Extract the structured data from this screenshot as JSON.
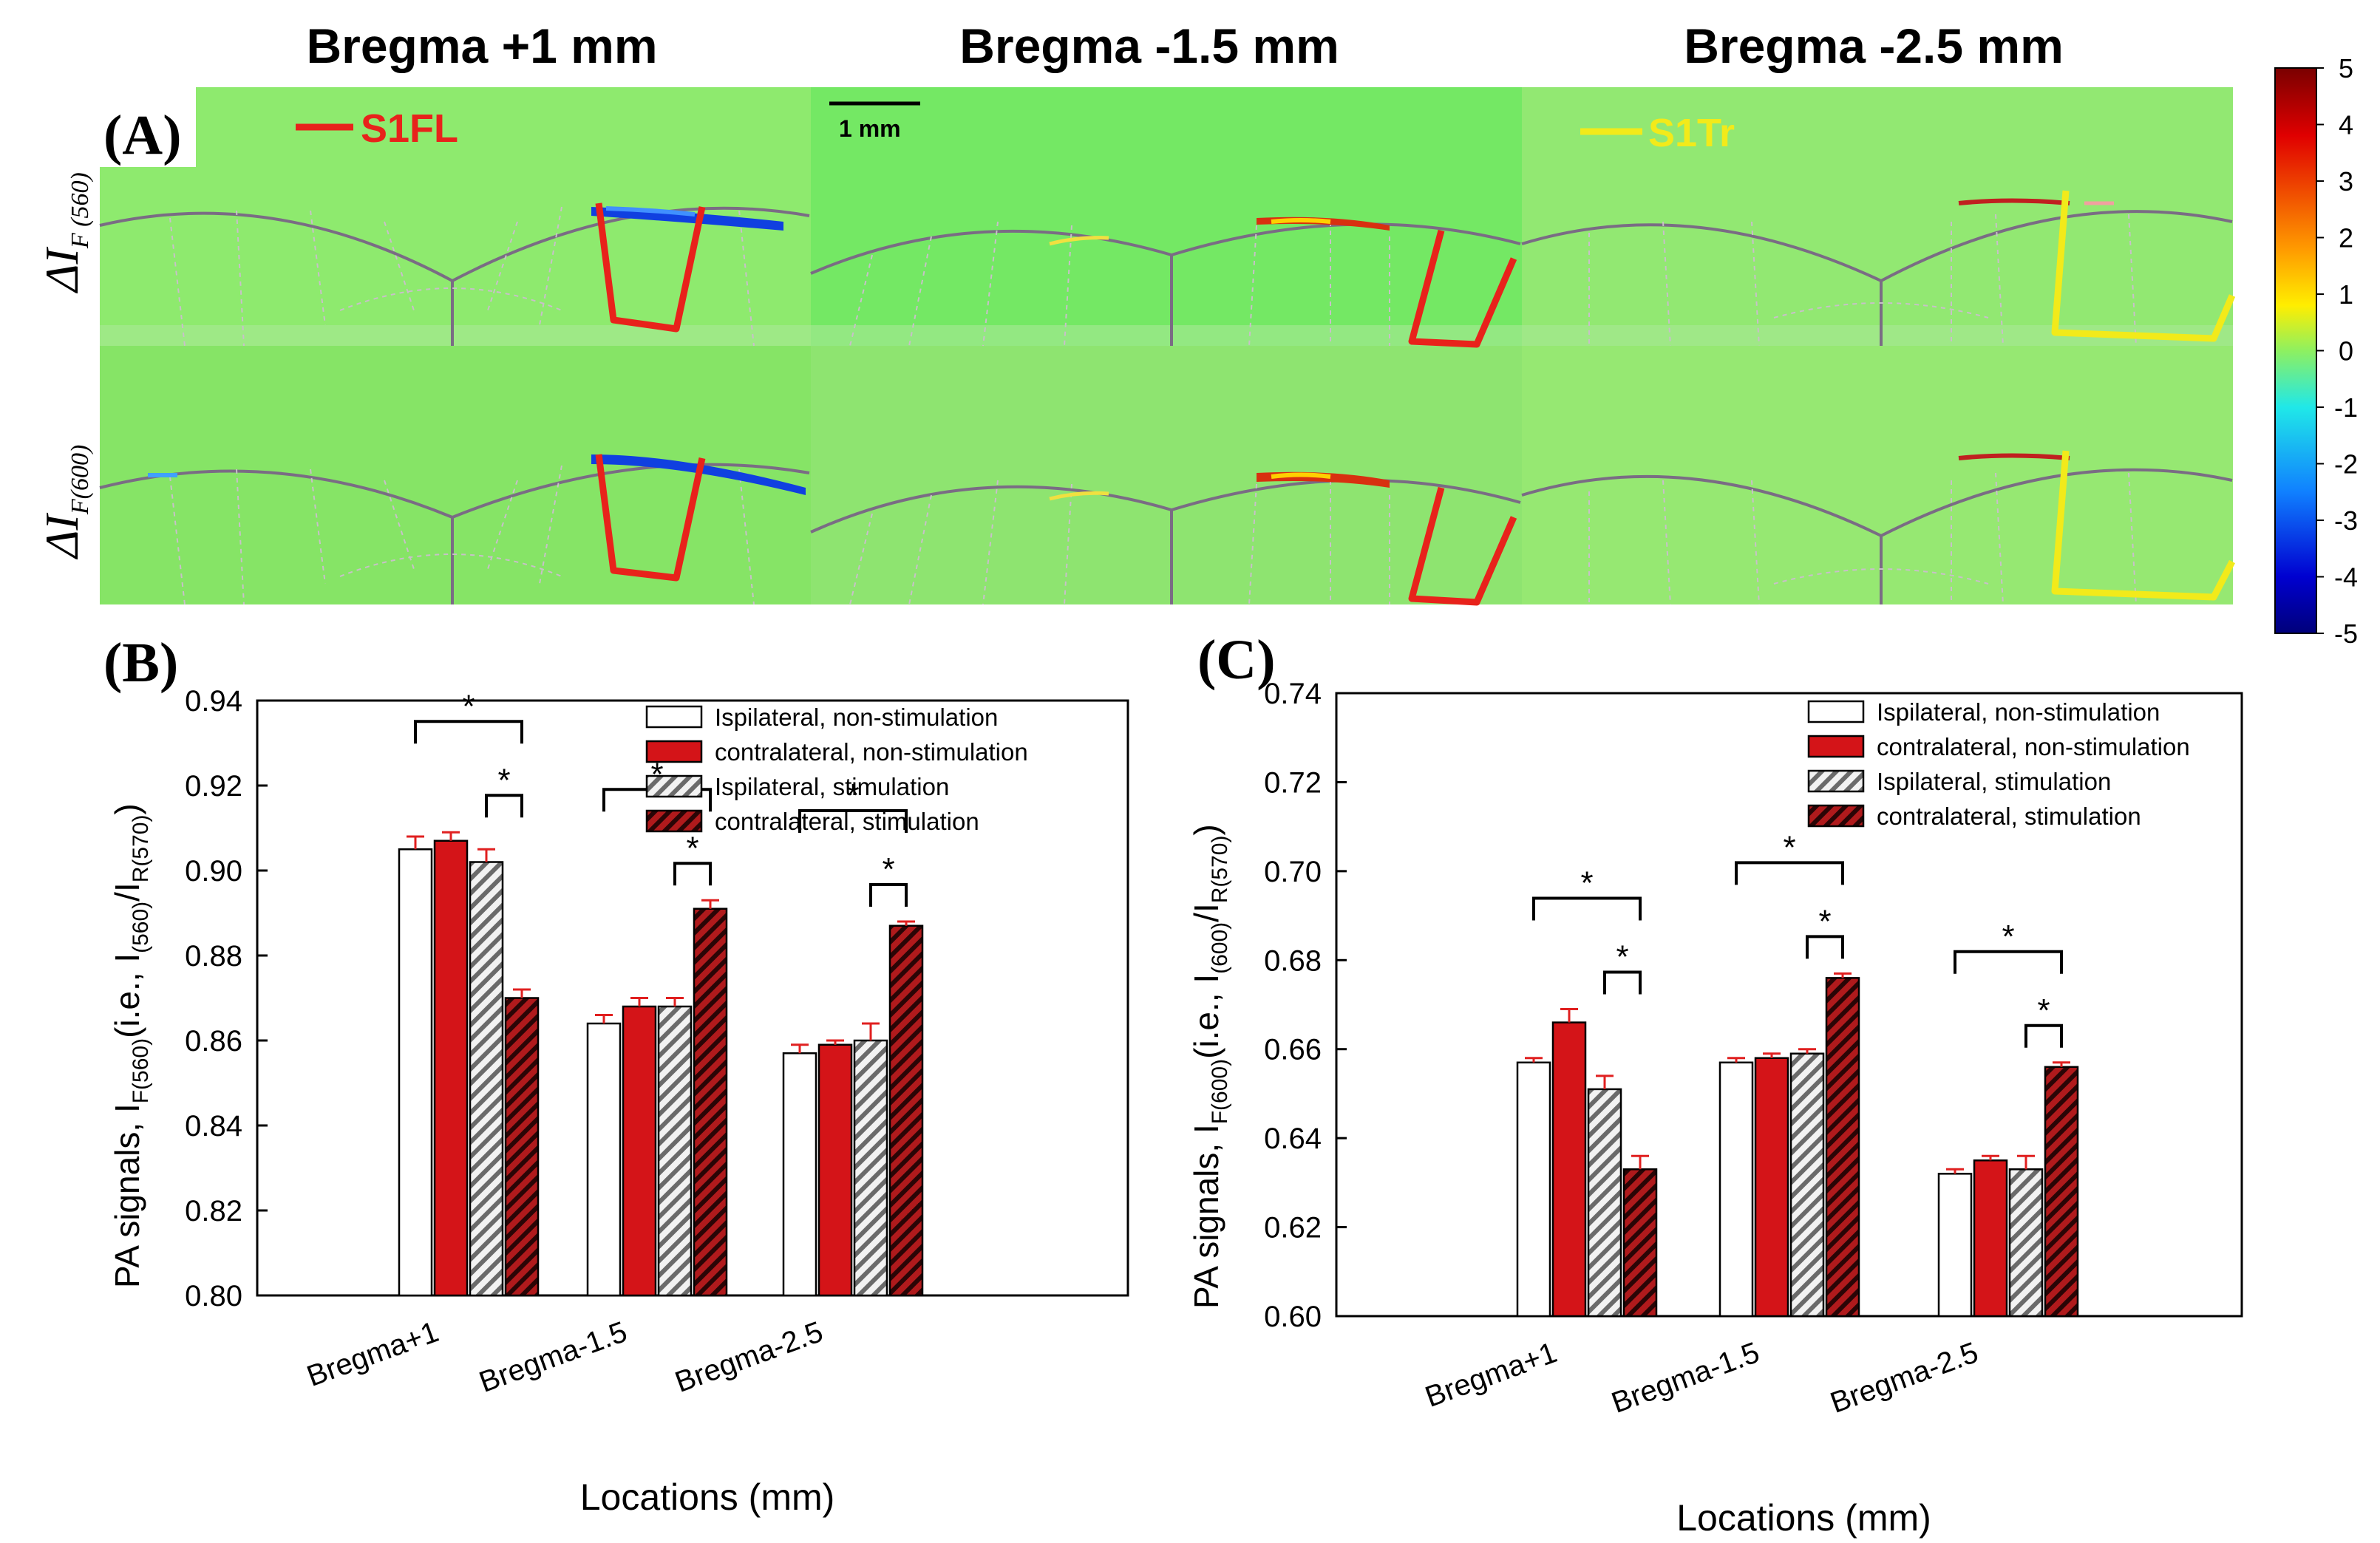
{
  "panel_a": {
    "label": "(A)",
    "columns": [
      "Bregma +1 mm",
      "Bregma -1.5 mm",
      "Bregma -2.5 mm"
    ],
    "row_labels": [
      {
        "main": "ΔI",
        "sub": "F (560)"
      },
      {
        "main": "ΔI",
        "sub": "F(600)"
      }
    ],
    "roi_labels": [
      "S1FL",
      "S1Tr"
    ],
    "scale_bar": "1 mm",
    "colorbar": {
      "ticks": [
        "5",
        "4",
        "3",
        "2",
        "1",
        "0",
        "-1",
        "-2",
        "-3",
        "-4",
        "-5"
      ],
      "range": [
        -5,
        5
      ]
    },
    "colors": {
      "map_green": "#8ee86a",
      "roi_s1fl": "#e8221b",
      "roi_s1tr": "#f2ea1a"
    }
  },
  "chart_data": [
    {
      "panel": "(B)",
      "type": "bar",
      "categories": [
        "Bregma+1",
        "Bregma-1.5",
        "Bregma-2.5"
      ],
      "series": [
        {
          "name": "Ispilateral, non-stimulation",
          "values": [
            0.905,
            0.864,
            0.857
          ],
          "errors": [
            0.003,
            0.002,
            0.002
          ],
          "color": "#ffffff",
          "hatch": false
        },
        {
          "name": "contralateral, non-stimulation",
          "values": [
            0.907,
            0.868,
            0.859
          ],
          "errors": [
            0.002,
            0.002,
            0.001
          ],
          "color": "#d41418",
          "hatch": false
        },
        {
          "name": "Ispilateral, stimulation",
          "values": [
            0.902,
            0.868,
            0.86
          ],
          "errors": [
            0.003,
            0.002,
            0.004
          ],
          "color": "#c8c8c8",
          "hatch": true
        },
        {
          "name": "contralateral, stimulation",
          "values": [
            0.87,
            0.891,
            0.887
          ],
          "errors": [
            0.002,
            0.002,
            0.001
          ],
          "color": "#8a1418",
          "hatch": true
        }
      ],
      "significance": "*",
      "xlabel": "Locations (mm)",
      "ylabel": {
        "prefix": "PA signals,  I",
        "sub1": "F(560)",
        "mid": "(i.e., I",
        "sub2": "(560)",
        "mid2": "/I",
        "sub3": "R(570)",
        "suffix": ")"
      },
      "ylim": [
        0.8,
        0.94
      ],
      "yticks": [
        "0.80",
        "0.82",
        "0.84",
        "0.86",
        "0.88",
        "0.90",
        "0.92",
        "0.94"
      ],
      "legend_position": "top-right",
      "grid": false
    },
    {
      "panel": "(C)",
      "type": "bar",
      "categories": [
        "Bregma+1",
        "Bregma-1.5",
        "Bregma-2.5"
      ],
      "series": [
        {
          "name": "Ispilateral, non-stimulation",
          "values": [
            0.657,
            0.657,
            0.632
          ],
          "errors": [
            0.001,
            0.001,
            0.001
          ],
          "color": "#ffffff",
          "hatch": false
        },
        {
          "name": "contralateral, non-stimulation",
          "values": [
            0.666,
            0.658,
            0.635
          ],
          "errors": [
            0.003,
            0.001,
            0.001
          ],
          "color": "#d41418",
          "hatch": false
        },
        {
          "name": "Ispilateral,  stimulation",
          "values": [
            0.651,
            0.659,
            0.633
          ],
          "errors": [
            0.003,
            0.001,
            0.003
          ],
          "color": "#c8c8c8",
          "hatch": true
        },
        {
          "name": "contralateral, stimulation",
          "values": [
            0.633,
            0.676,
            0.656
          ],
          "errors": [
            0.003,
            0.001,
            0.001
          ],
          "color": "#8a1418",
          "hatch": true
        }
      ],
      "significance": "*",
      "xlabel": "Locations (mm)",
      "ylabel": {
        "prefix": "PA signals,  I",
        "sub1": "F(600)",
        "mid": "(i.e., I",
        "sub2": "(600)",
        "mid2": "/I",
        "sub3": "R(570)",
        "suffix": ")"
      },
      "ylim": [
        0.6,
        0.74
      ],
      "yticks": [
        "0.60",
        "0.62",
        "0.64",
        "0.66",
        "0.68",
        "0.70",
        "0.72",
        "0.74"
      ],
      "legend_position": "top-right",
      "grid": false
    }
  ]
}
